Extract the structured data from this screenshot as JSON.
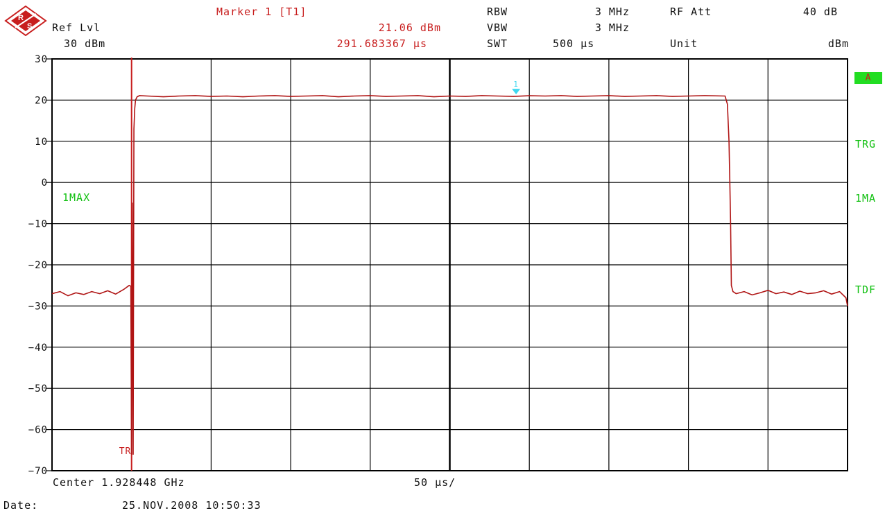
{
  "header": {
    "ref_label": "Ref Lvl",
    "ref_value": "30 dBm",
    "marker_title": "Marker 1 [T1]",
    "marker_level": "21.06 dBm",
    "marker_time": "291.683367 µs",
    "rbw_label": "RBW",
    "rbw_value": "3 MHz",
    "vbw_label": "VBW",
    "vbw_value": "3 MHz",
    "swt_label": "SWT",
    "swt_value": "500 µs",
    "rfatt_label": "RF Att",
    "rfatt_value": "40 dB",
    "unit_label": "Unit",
    "unit_value": "dBm"
  },
  "side_labels": {
    "trace_left": "1MAX",
    "badge": "A",
    "trg": "TRG",
    "trace_right": "1MA",
    "tdf": "TDF"
  },
  "footer": {
    "center": "Center 1.928448 GHz",
    "span": "50 µs/",
    "date_label": "Date:",
    "date_value": "25.NOV.2008  10:50:33"
  },
  "colors": {
    "trace": "#b01515",
    "marker": "#40d8f0",
    "status_green": "#10c010",
    "text_red": "#c81e1e"
  },
  "chart_data": {
    "type": "line",
    "xlabel": "",
    "ylabel": "",
    "xlim": [
      0,
      500
    ],
    "ylim": [
      -70,
      30
    ],
    "x_unit": "µs",
    "y_unit": "dBm",
    "grid": true,
    "yticks": [
      "30",
      "20",
      "10",
      "0",
      "−10",
      "−20",
      "−30",
      "−40",
      "−50",
      "−60",
      "−70"
    ],
    "trigger": {
      "x": 50,
      "label": "TR"
    },
    "marker": {
      "label": "1",
      "x": 291.683367,
      "y": 21.06
    },
    "series": [
      {
        "x": [
          0,
          5,
          10,
          15,
          20,
          25,
          30,
          35,
          40,
          45,
          48.5,
          49.5,
          50.0,
          50.5,
          51.0,
          51.5,
          52.0,
          52.5,
          53.5,
          55,
          60,
          70,
          80,
          90,
          100,
          110,
          120,
          130,
          140,
          150,
          160,
          170,
          180,
          190,
          200,
          210,
          220,
          230,
          240,
          250,
          260,
          270,
          280,
          290,
          300,
          310,
          320,
          330,
          340,
          350,
          360,
          370,
          380,
          390,
          400,
          410,
          423,
          424.5,
          425.5,
          426.0,
          426.5,
          427.0,
          428.0,
          430,
          435,
          440,
          445,
          450,
          455,
          460,
          465,
          470,
          475,
          480,
          485,
          490,
          495,
          499,
          500
        ],
        "y": [
          -27,
          -26.5,
          -27.5,
          -26.8,
          -27.2,
          -26.5,
          -27,
          -26.3,
          -27.1,
          -26,
          -25,
          -25.2,
          -66,
          -5,
          -66,
          13,
          18,
          20,
          20.8,
          21.1,
          21,
          20.8,
          21,
          21.1,
          20.9,
          21,
          20.8,
          21,
          21.1,
          20.9,
          21,
          21.1,
          20.8,
          21,
          21.1,
          20.9,
          21,
          21.1,
          20.8,
          21,
          20.9,
          21.1,
          21,
          20.9,
          21.06,
          21,
          21.1,
          20.9,
          21,
          21.1,
          20.9,
          21,
          21.1,
          20.9,
          21,
          21.1,
          21,
          19,
          10,
          1,
          -10,
          -25,
          -26.5,
          -27,
          -26.5,
          -27.3,
          -26.8,
          -26.2,
          -27,
          -26.6,
          -27.2,
          -26.4,
          -27,
          -26.8,
          -26.3,
          -27.1,
          -26.5,
          -28,
          -30
        ]
      }
    ]
  }
}
